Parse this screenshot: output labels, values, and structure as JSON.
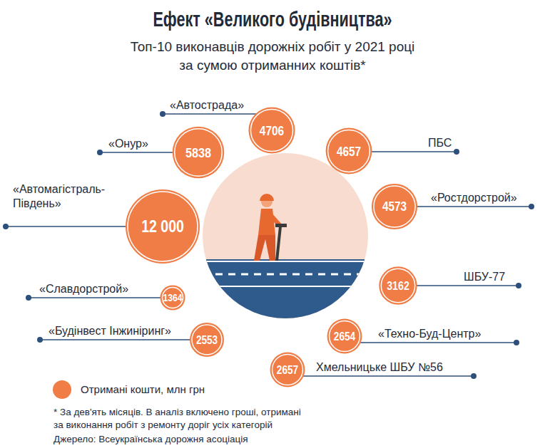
{
  "chart_data": {
    "type": "bubble",
    "title": "Ефект «Великого будівництва»",
    "subtitle": [
      "Топ-10 виконавців дорожніх робіт у 2021 році",
      "за сумою отриманних коштів*"
    ],
    "categories": [
      "«Автомагістраль-Південь»",
      "«Онур»",
      "«Автострада»",
      "ПБС",
      "«Ростдорстрой»",
      "ШБУ-77",
      "Хмельницьке ШБУ №56",
      "«Техно-Буд-Центр»",
      "«Будінвест Інжиніринг»",
      "«Славдорстрой»"
    ],
    "series": [
      {
        "name": "Отримані кошти, млн грн",
        "color": "#f07c46",
        "values": [
          12000,
          5838,
          4706,
          4657,
          4573,
          3162,
          2657,
          2654,
          2553,
          1364
        ],
        "value_labels": [
          "12 000",
          "5838",
          "4706",
          "4657",
          "4573",
          "3162",
          "2657",
          "2654",
          "2553",
          "1364"
        ]
      }
    ],
    "data_labels": true,
    "notes": [
      "* За дев'ять місяців. В аналіз включено гроші, отримані",
      "за виконання робіт з ремонту доріг усіх категорій"
    ],
    "source": "Джерело: Всеукраїнська дорожня асоціація"
  }
}
